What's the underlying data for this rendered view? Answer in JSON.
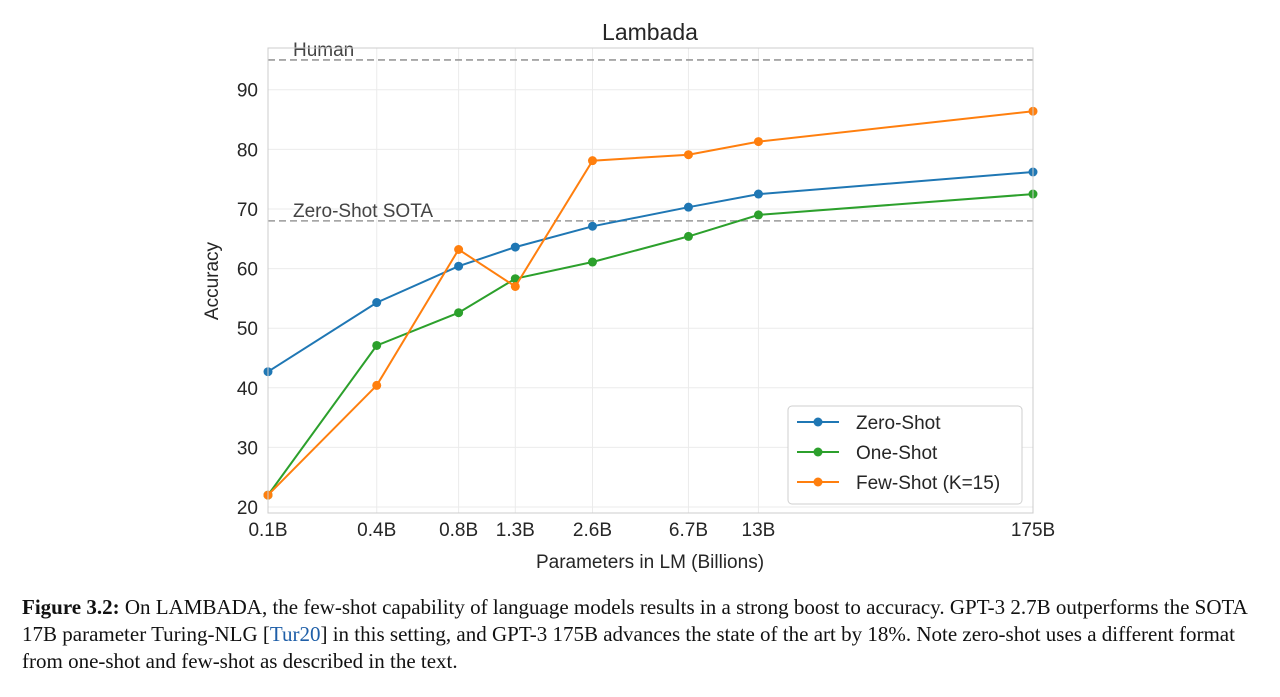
{
  "chart_data": {
    "type": "line",
    "title": "Lambada",
    "xlabel": "Parameters in LM (Billions)",
    "ylabel": "Accuracy",
    "x_tick_labels": [
      "0.1B",
      "0.4B",
      "0.8B",
      "1.3B",
      "2.6B",
      "6.7B",
      "13B",
      "175B"
    ],
    "x_values": [
      0.125,
      0.35,
      0.76,
      1.3,
      2.7,
      6.7,
      13,
      175
    ],
    "x_scale": "log",
    "ylim": [
      19,
      97
    ],
    "y_ticks": [
      20,
      30,
      40,
      50,
      60,
      70,
      80,
      90
    ],
    "grid": true,
    "legend_position": "bottom-right",
    "series": [
      {
        "name": "Zero-Shot",
        "color": "#1f77b4",
        "values": [
          42.7,
          54.3,
          60.4,
          63.6,
          67.1,
          70.3,
          72.5,
          76.2
        ]
      },
      {
        "name": "One-Shot",
        "color": "#2ca02c",
        "values": [
          22.0,
          47.1,
          52.6,
          58.3,
          61.1,
          65.4,
          69.0,
          72.5
        ]
      },
      {
        "name": "Few-Shot (K=15)",
        "color": "#ff7f0e",
        "values": [
          22.0,
          40.4,
          63.2,
          57.0,
          78.1,
          79.1,
          81.3,
          86.4
        ]
      }
    ],
    "reference_lines": [
      {
        "label": "Human",
        "y": 95.0,
        "color": "#999999"
      },
      {
        "label": "Zero-Shot SOTA",
        "y": 68.0,
        "color": "#999999"
      }
    ]
  },
  "caption": {
    "label": "Figure 3.2:",
    "text_before_ref": " On LAMBADA, the few-shot capability of language models results in a strong boost to accuracy. GPT-3 2.7B outperforms the SOTA 17B parameter Turing-NLG [",
    "ref": "Tur20",
    "text_after_ref": "] in this setting, and GPT-3 175B advances the state of the art by 18%. Note zero-shot uses a different format from one-shot and few-shot as described in the text."
  }
}
